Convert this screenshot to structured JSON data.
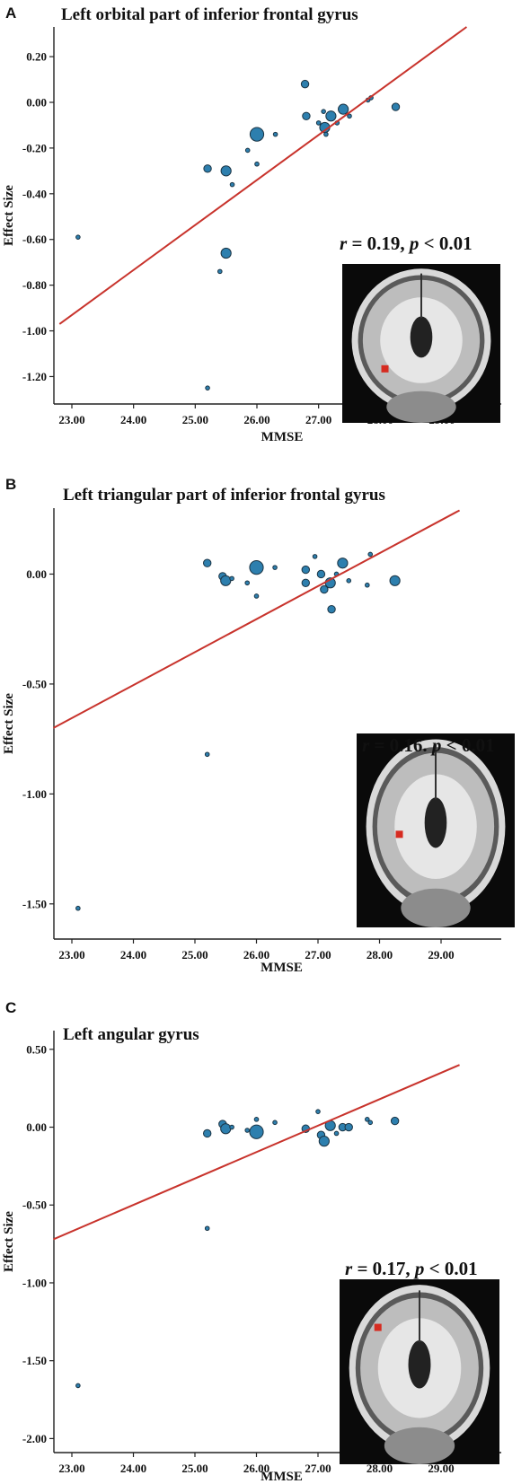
{
  "chart_data": [
    {
      "type": "scatter",
      "panel": "A",
      "title": "Left orbital part of inferior frontal gyrus",
      "xlabel": "MMSE",
      "ylabel": "Effect Size",
      "xlim": [
        22.8,
        29.4
      ],
      "ylim": [
        -1.32,
        0.33
      ],
      "xticks": [
        "23.00",
        "24.00",
        "25.00",
        "26.00",
        "27.00",
        "28.00",
        "29.00"
      ],
      "yticks": [
        "0.20",
        "0.00",
        "-0.20",
        "-0.40",
        "-0.60",
        "-0.80",
        "-1.00",
        "-1.20"
      ],
      "stat_r": "0.19",
      "stat_p": "0.01",
      "stat_sep": ",",
      "fit": [
        [
          22.8,
          -0.97
        ],
        [
          29.4,
          0.33
        ]
      ],
      "points": [
        {
          "x": 23.1,
          "y": -0.59,
          "w": 1
        },
        {
          "x": 25.2,
          "y": -0.29,
          "w": 2
        },
        {
          "x": 25.5,
          "y": -0.3,
          "w": 3
        },
        {
          "x": 25.6,
          "y": -0.36,
          "w": 1
        },
        {
          "x": 25.5,
          "y": -0.66,
          "w": 3
        },
        {
          "x": 25.4,
          "y": -0.74,
          "w": 1
        },
        {
          "x": 25.2,
          "y": -1.25,
          "w": 1
        },
        {
          "x": 25.85,
          "y": -0.21,
          "w": 1
        },
        {
          "x": 26.0,
          "y": -0.14,
          "w": 4
        },
        {
          "x": 26.0,
          "y": -0.27,
          "w": 1
        },
        {
          "x": 26.3,
          "y": -0.14,
          "w": 1
        },
        {
          "x": 26.78,
          "y": 0.08,
          "w": 2
        },
        {
          "x": 26.8,
          "y": -0.06,
          "w": 2
        },
        {
          "x": 27.0,
          "y": -0.09,
          "w": 1
        },
        {
          "x": 27.08,
          "y": -0.04,
          "w": 1
        },
        {
          "x": 27.1,
          "y": -0.11,
          "w": 3
        },
        {
          "x": 27.12,
          "y": -0.14,
          "w": 1
        },
        {
          "x": 27.2,
          "y": -0.06,
          "w": 3
        },
        {
          "x": 27.3,
          "y": -0.09,
          "w": 1
        },
        {
          "x": 27.4,
          "y": -0.03,
          "w": 3
        },
        {
          "x": 27.5,
          "y": -0.06,
          "w": 1
        },
        {
          "x": 27.8,
          "y": 0.01,
          "w": 1
        },
        {
          "x": 27.85,
          "y": 0.02,
          "w": 1
        },
        {
          "x": 28.25,
          "y": -0.02,
          "w": 2
        }
      ]
    },
    {
      "type": "scatter",
      "panel": "B",
      "title": "Left triangular part of inferior frontal gyrus",
      "xlabel": "MMSE",
      "ylabel": "Effect Size",
      "xlim": [
        22.7,
        29.3
      ],
      "ylim": [
        -1.66,
        0.3
      ],
      "xticks": [
        "23.00",
        "24.00",
        "25.00",
        "26.00",
        "27.00",
        "28.00",
        "29.00"
      ],
      "yticks": [
        "0.00",
        "-0.50",
        "-1.00",
        "-1.50"
      ],
      "stat_r": "0.16",
      "stat_p": "0.01",
      "stat_sep": ".",
      "fit": [
        [
          22.7,
          -0.7
        ],
        [
          29.3,
          0.29
        ]
      ],
      "points": [
        {
          "x": 23.1,
          "y": -1.52,
          "w": 1
        },
        {
          "x": 25.2,
          "y": -0.82,
          "w": 1
        },
        {
          "x": 25.2,
          "y": 0.05,
          "w": 2
        },
        {
          "x": 25.45,
          "y": -0.01,
          "w": 2
        },
        {
          "x": 25.5,
          "y": -0.03,
          "w": 3
        },
        {
          "x": 25.6,
          "y": -0.02,
          "w": 1
        },
        {
          "x": 25.85,
          "y": -0.04,
          "w": 1
        },
        {
          "x": 26.0,
          "y": 0.03,
          "w": 4
        },
        {
          "x": 26.0,
          "y": -0.1,
          "w": 1
        },
        {
          "x": 26.3,
          "y": 0.03,
          "w": 1
        },
        {
          "x": 26.8,
          "y": 0.02,
          "w": 2
        },
        {
          "x": 26.8,
          "y": -0.04,
          "w": 2
        },
        {
          "x": 26.95,
          "y": 0.08,
          "w": 1
        },
        {
          "x": 27.05,
          "y": 0.0,
          "w": 2
        },
        {
          "x": 27.1,
          "y": -0.07,
          "w": 2
        },
        {
          "x": 27.2,
          "y": -0.04,
          "w": 3
        },
        {
          "x": 27.22,
          "y": -0.16,
          "w": 2
        },
        {
          "x": 27.3,
          "y": 0.0,
          "w": 1
        },
        {
          "x": 27.4,
          "y": 0.05,
          "w": 3
        },
        {
          "x": 27.5,
          "y": -0.03,
          "w": 1
        },
        {
          "x": 27.8,
          "y": -0.05,
          "w": 1
        },
        {
          "x": 27.85,
          "y": 0.09,
          "w": 1
        },
        {
          "x": 28.25,
          "y": -0.03,
          "w": 3
        }
      ]
    },
    {
      "type": "scatter",
      "panel": "C",
      "title": "Left angular gyrus",
      "xlabel": "MMSE",
      "ylabel": "Effect Size",
      "xlim": [
        22.7,
        29.3
      ],
      "ylim": [
        -2.09,
        0.62
      ],
      "xticks": [
        "23.00",
        "24.00",
        "25.00",
        "26.00",
        "27.00",
        "28.00",
        "29.00"
      ],
      "yticks": [
        "0.50",
        "0.00",
        "-0.50",
        "-1.00",
        "-1.50",
        "-2.00"
      ],
      "stat_r": "0.17",
      "stat_p": "0.01",
      "stat_sep": ",",
      "fit": [
        [
          22.7,
          -0.72
        ],
        [
          29.3,
          0.4
        ]
      ],
      "points": [
        {
          "x": 23.1,
          "y": -1.66,
          "w": 1
        },
        {
          "x": 25.2,
          "y": -0.65,
          "w": 1
        },
        {
          "x": 25.2,
          "y": -0.04,
          "w": 2
        },
        {
          "x": 25.45,
          "y": 0.02,
          "w": 2
        },
        {
          "x": 25.5,
          "y": -0.01,
          "w": 3
        },
        {
          "x": 25.6,
          "y": 0.0,
          "w": 1
        },
        {
          "x": 25.85,
          "y": -0.02,
          "w": 1
        },
        {
          "x": 26.0,
          "y": -0.03,
          "w": 4
        },
        {
          "x": 26.0,
          "y": 0.05,
          "w": 1
        },
        {
          "x": 26.3,
          "y": 0.03,
          "w": 1
        },
        {
          "x": 26.8,
          "y": -0.01,
          "w": 2
        },
        {
          "x": 27.0,
          "y": 0.1,
          "w": 1
        },
        {
          "x": 27.05,
          "y": -0.05,
          "w": 2
        },
        {
          "x": 27.1,
          "y": -0.09,
          "w": 3
        },
        {
          "x": 27.2,
          "y": 0.01,
          "w": 3
        },
        {
          "x": 27.3,
          "y": -0.04,
          "w": 1
        },
        {
          "x": 27.4,
          "y": 0.0,
          "w": 2
        },
        {
          "x": 27.5,
          "y": 0.0,
          "w": 2
        },
        {
          "x": 27.8,
          "y": 0.05,
          "w": 1
        },
        {
          "x": 27.85,
          "y": 0.03,
          "w": 1
        },
        {
          "x": 28.25,
          "y": 0.04,
          "w": 2
        }
      ]
    }
  ]
}
